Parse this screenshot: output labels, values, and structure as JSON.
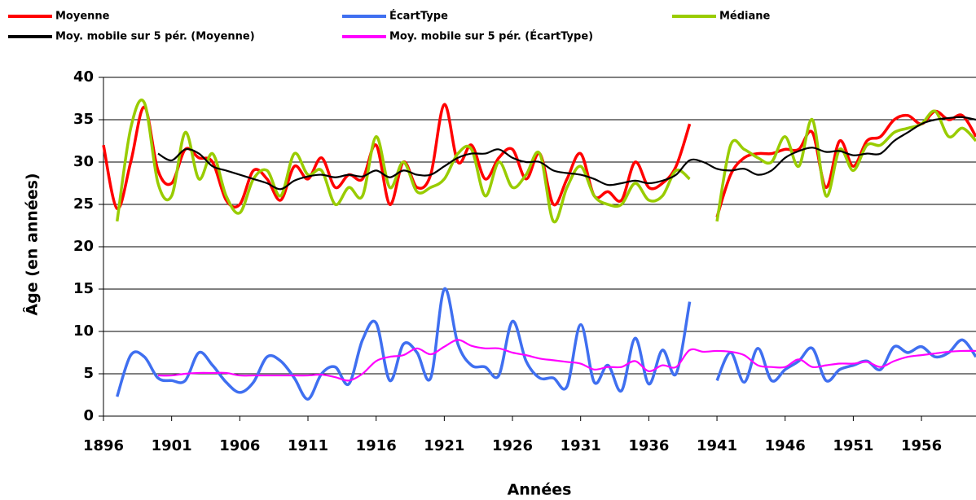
{
  "chart_data": {
    "type": "line",
    "xlabel": "Années",
    "ylabel": "Âge (en années)",
    "x": [
      1896,
      1897,
      1898,
      1899,
      1900,
      1901,
      1902,
      1903,
      1904,
      1905,
      1906,
      1907,
      1908,
      1909,
      1910,
      1911,
      1912,
      1913,
      1914,
      1915,
      1916,
      1917,
      1918,
      1919,
      1920,
      1921,
      1922,
      1923,
      1924,
      1925,
      1926,
      1927,
      1928,
      1929,
      1930,
      1931,
      1932,
      1933,
      1934,
      1935,
      1936,
      1937,
      1938,
      1939,
      1940,
      1941,
      1942,
      1943,
      1944,
      1945,
      1946,
      1947,
      1948,
      1949,
      1950,
      1951,
      1952,
      1953,
      1954,
      1955,
      1956,
      1957,
      1958,
      1959,
      1960
    ],
    "xlim": [
      1896,
      1960
    ],
    "xticks": [
      1896,
      1901,
      1906,
      1911,
      1916,
      1921,
      1926,
      1931,
      1936,
      1941,
      1946,
      1951,
      1956
    ],
    "ylim": [
      0,
      40
    ],
    "yticks": [
      0,
      5,
      10,
      15,
      20,
      25,
      30,
      35,
      40
    ],
    "grid": true,
    "series": [
      {
        "name": "Moyenne",
        "color": "#ff0000",
        "values": [
          32,
          24.5,
          30,
          36.5,
          29,
          27.5,
          31.5,
          30.5,
          30,
          25.5,
          25,
          29,
          28,
          25.5,
          29.5,
          28,
          30.5,
          27,
          28.5,
          28,
          32,
          25,
          30,
          27,
          28.5,
          36.8,
          30,
          32,
          28,
          30.5,
          31.5,
          28,
          31,
          25,
          28,
          31,
          26,
          26.5,
          25.5,
          30,
          27,
          27.5,
          29.5,
          34.5,
          null,
          23.5,
          28.5,
          30.5,
          31,
          31,
          31.5,
          31.5,
          33.5,
          27,
          32.5,
          29.5,
          32.5,
          33,
          35,
          35.5,
          34.5,
          36,
          35,
          35.5,
          33
        ]
      },
      {
        "name": "ÉcartType",
        "color": "#3f6ff0",
        "values": [
          null,
          2.3,
          7.2,
          7,
          4.5,
          4.2,
          4.2,
          7.5,
          6,
          4,
          2.8,
          4,
          7,
          6.5,
          4.5,
          2,
          5,
          5.8,
          3.8,
          9,
          11,
          4.2,
          8.5,
          7.5,
          4.5,
          15,
          8.5,
          6,
          5.8,
          4.8,
          11.2,
          6.5,
          4.5,
          4.5,
          3.5,
          10.8,
          4,
          6,
          3,
          9.2,
          3.8,
          7.8,
          5,
          13.5,
          null,
          4.2,
          7.5,
          4,
          8,
          4.2,
          5.5,
          6.5,
          8,
          4.2,
          5.5,
          6,
          6.5,
          5.5,
          8.2,
          7.5,
          8.2,
          7,
          7.5,
          9,
          7
        ]
      },
      {
        "name": "Médiane",
        "color": "#99cc00",
        "values": [
          null,
          23,
          34,
          37,
          27.5,
          26,
          33.5,
          28,
          31,
          26,
          24,
          28,
          29,
          26,
          31,
          28.5,
          29,
          25,
          27,
          26,
          33,
          27,
          30,
          26.5,
          27,
          28,
          31,
          31.5,
          26,
          30,
          27,
          28.5,
          31,
          23,
          27,
          29.5,
          26,
          25,
          25,
          27.5,
          25.5,
          26,
          29,
          28,
          null,
          23,
          32,
          31.5,
          30.5,
          30,
          33,
          29.5,
          35,
          26,
          31.5,
          29,
          32,
          32,
          33.5,
          34,
          34.5,
          36,
          33,
          34,
          32.5
        ]
      },
      {
        "name": "Moy. mobile sur 5 pér. (Moyenne)",
        "color": "#000000",
        "values": [
          null,
          null,
          null,
          null,
          31,
          30.2,
          31.5,
          31,
          29.5,
          29,
          28.5,
          28,
          27.5,
          26.8,
          27.8,
          28.3,
          28.5,
          28.2,
          28.5,
          28.3,
          29,
          28.2,
          29,
          28.5,
          28.5,
          29.5,
          30.5,
          31,
          31,
          31.5,
          30.5,
          30,
          30,
          29,
          28.7,
          28.5,
          28,
          27.3,
          27.5,
          27.8,
          27.5,
          27.8,
          28.5,
          30.2,
          30,
          29.2,
          29,
          29.2,
          28.5,
          29,
          30.5,
          31.3,
          31.7,
          31.2,
          31.3,
          30.8,
          31,
          31,
          32.5,
          33.5,
          34.5,
          35,
          35.2,
          35.3,
          35
        ]
      },
      {
        "name": "Moy. mobile sur 5 pér. (ÉcartType)",
        "color": "#ff00ff",
        "values": [
          null,
          null,
          null,
          null,
          4.8,
          4.8,
          5,
          5.1,
          5.1,
          5.1,
          4.8,
          4.8,
          4.8,
          4.8,
          4.8,
          4.8,
          4.9,
          4.6,
          4.2,
          5,
          6.5,
          7,
          7.2,
          8,
          7.3,
          8.2,
          9,
          8.3,
          8,
          8,
          7.5,
          7.2,
          6.8,
          6.6,
          6.4,
          6.2,
          5.5,
          5.8,
          5.8,
          6.5,
          5.3,
          6,
          5.8,
          7.8,
          7.6,
          7.7,
          7.6,
          7.2,
          6,
          5.8,
          5.8,
          6.7,
          5.8,
          6,
          6.2,
          6.2,
          6.4,
          5.8,
          6.5,
          7,
          7.2,
          7.4,
          7.6,
          7.7,
          7.7
        ]
      }
    ]
  }
}
